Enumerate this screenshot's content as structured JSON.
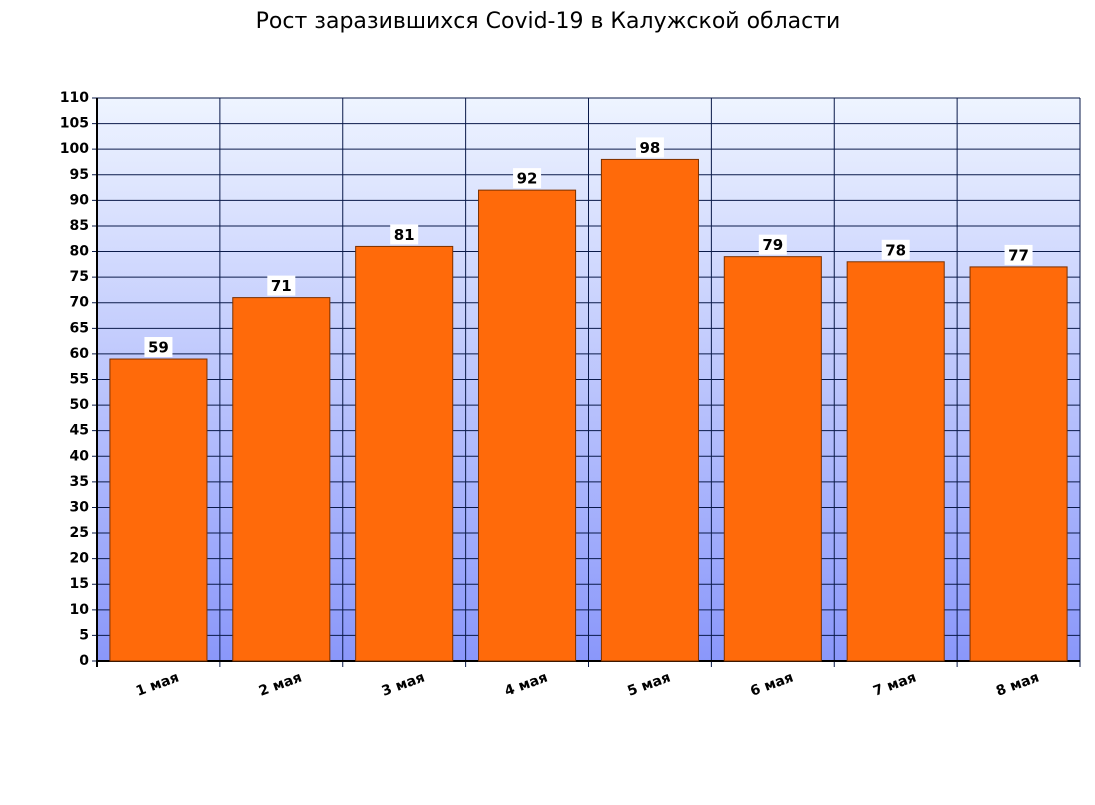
{
  "chart_data": {
    "type": "bar",
    "title": "Рост заразившихся Covid-19 в Калужской области",
    "categories": [
      "1 мая",
      "2 мая",
      "3 мая",
      "4 мая",
      "5 мая",
      "6 мая",
      "7 мая",
      "8 мая"
    ],
    "values": [
      59,
      71,
      81,
      92,
      98,
      79,
      78,
      77
    ],
    "color": "#ff6a0a",
    "ylim": [
      0,
      110
    ],
    "yticks": [
      0,
      5,
      10,
      15,
      20,
      25,
      30,
      35,
      40,
      45,
      50,
      55,
      60,
      65,
      70,
      75,
      80,
      85,
      90,
      95,
      100,
      105,
      110
    ],
    "grid": true
  }
}
